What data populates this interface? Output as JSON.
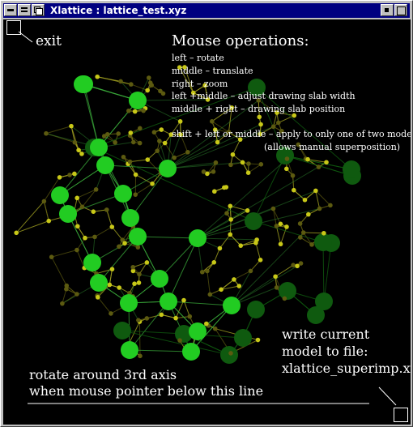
{
  "window": {
    "title": "Xlattice : lattice_test.xyz"
  },
  "titlebar": {
    "icons": [
      "window-menu-icon",
      "window-list-icon",
      "restore-icon",
      "iconify-icon",
      "maximize-icon"
    ]
  },
  "canvas": {
    "exit_label": "exit",
    "help": {
      "heading": "Mouse operations:",
      "lines": [
        "left – rotate",
        "middle – translate",
        "right – zoom",
        "left +middle – adjust drawing slab width",
        "middle + right – drawing slab position",
        "shift + left or middle – apply to only one of two models",
        "(allows manual superposition)"
      ]
    },
    "write_label": [
      "write current",
      "model to file:",
      "xlattice_superimp.xyz"
    ],
    "rotate_label": [
      "rotate around 3rd axis",
      "when mouse pointer below this line"
    ]
  },
  "colors": {
    "titlebar": "#000080",
    "canvas_bg": "#000000",
    "node_bright": "#22cc22",
    "node_dim": "#0f5a0f",
    "small_bright": "#c8c818",
    "small_dim": "#5c5a10",
    "edge_bright": "#3aa83a",
    "edge_small": "#a0a020"
  }
}
